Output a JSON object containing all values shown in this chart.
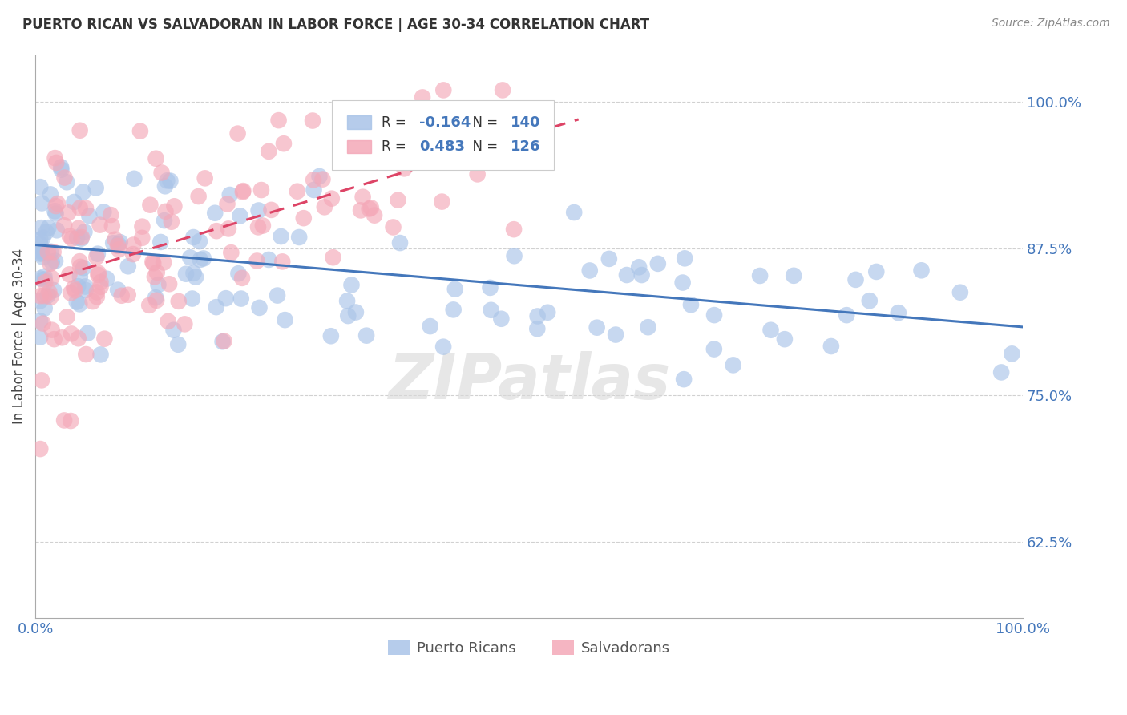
{
  "title": "PUERTO RICAN VS SALVADORAN IN LABOR FORCE | AGE 30-34 CORRELATION CHART",
  "source": "Source: ZipAtlas.com",
  "ylabel": "In Labor Force | Age 30-34",
  "xlim": [
    0.0,
    1.0
  ],
  "ylim": [
    0.56,
    1.04
  ],
  "yticks": [
    0.625,
    0.75,
    0.875,
    1.0
  ],
  "ytick_labels": [
    "62.5%",
    "75.0%",
    "87.5%",
    "100.0%"
  ],
  "xticks": [
    0.0,
    1.0
  ],
  "xtick_labels": [
    "0.0%",
    "100.0%"
  ],
  "blue_R": -0.164,
  "blue_N": 140,
  "pink_R": 0.483,
  "pink_N": 126,
  "blue_color": "#aac4e8",
  "pink_color": "#f4a8b8",
  "blue_line_color": "#4477bb",
  "pink_line_color": "#dd4466",
  "tick_label_color": "#4477bb",
  "legend_label_blue": "Puerto Ricans",
  "legend_label_pink": "Salvadorans",
  "watermark": "ZIPatlas",
  "background_color": "#ffffff",
  "blue_line_x0": 0.0,
  "blue_line_y0": 0.878,
  "blue_line_x1": 1.0,
  "blue_line_y1": 0.808,
  "pink_line_x0": 0.0,
  "pink_line_y0": 0.845,
  "pink_line_x1": 0.55,
  "pink_line_y1": 0.985
}
